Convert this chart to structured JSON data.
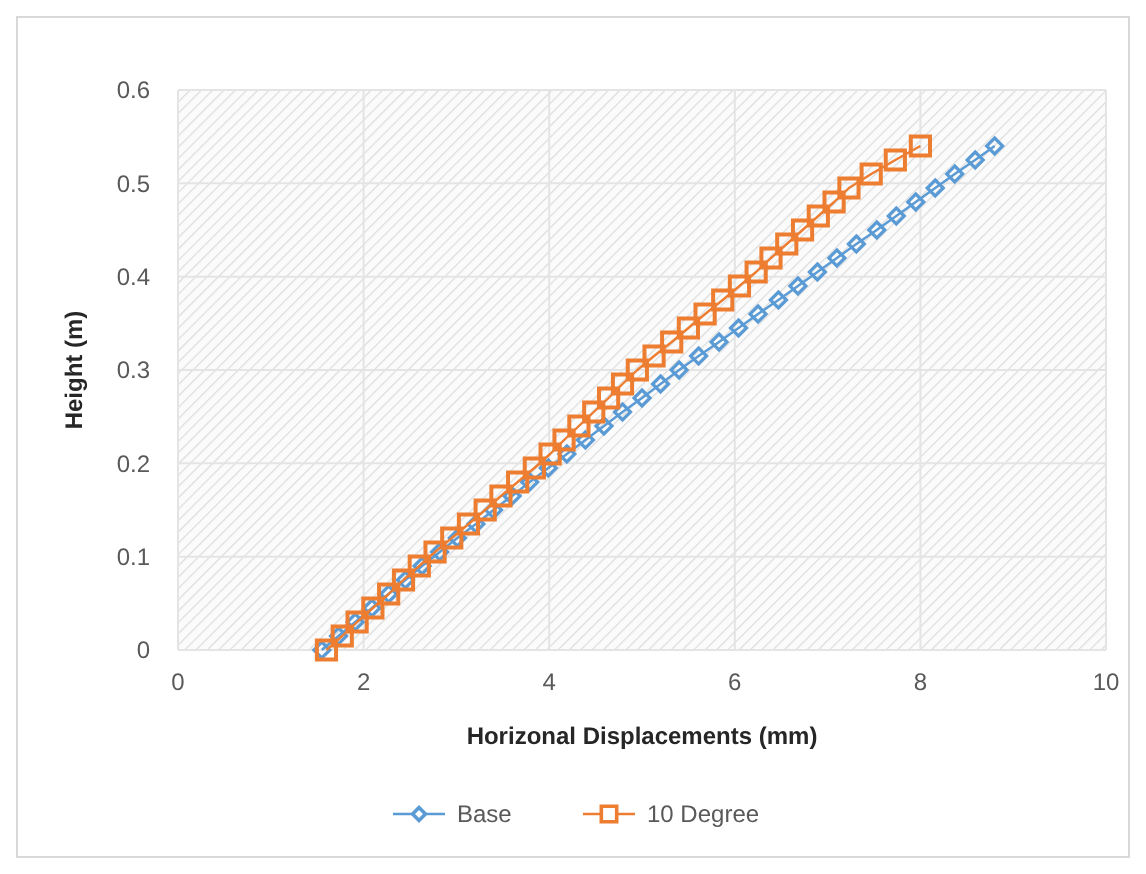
{
  "chart_data": {
    "type": "line",
    "xlabel": "Horizonal Displacements (mm)",
    "ylabel": "Height (m)",
    "xlim": [
      0,
      10
    ],
    "xticks": [
      0,
      2,
      4,
      6,
      8,
      10
    ],
    "ylim": [
      0,
      0.6
    ],
    "yticks": [
      0,
      0.1,
      0.2,
      0.3,
      0.4,
      0.5,
      0.6
    ],
    "grid": true,
    "legend": "bottom",
    "line_style": "solid",
    "series": [
      {
        "name": "Base",
        "color": "#5b9bd5",
        "marker": "diamond",
        "x": [
          1.55,
          1.73,
          1.91,
          2.09,
          2.27,
          2.45,
          2.63,
          2.82,
          3.01,
          3.21,
          3.4,
          3.6,
          3.79,
          3.99,
          4.19,
          4.39,
          4.59,
          4.79,
          5.0,
          5.2,
          5.4,
          5.61,
          5.83,
          6.04,
          6.25,
          6.47,
          6.68,
          6.89,
          7.1,
          7.31,
          7.53,
          7.74,
          7.95,
          8.16,
          8.37,
          8.59,
          8.8
        ],
        "values": [
          0,
          0.015,
          0.03,
          0.045,
          0.06,
          0.075,
          0.09,
          0.105,
          0.12,
          0.135,
          0.15,
          0.165,
          0.18,
          0.195,
          0.21,
          0.225,
          0.24,
          0.255,
          0.27,
          0.285,
          0.3,
          0.315,
          0.33,
          0.345,
          0.36,
          0.375,
          0.39,
          0.405,
          0.42,
          0.435,
          0.45,
          0.465,
          0.48,
          0.495,
          0.51,
          0.525,
          0.54
        ]
      },
      {
        "name": "10 Degree",
        "color": "#ed7d31",
        "marker": "square",
        "x": [
          1.6,
          1.77,
          1.93,
          2.1,
          2.27,
          2.43,
          2.6,
          2.77,
          2.95,
          3.13,
          3.31,
          3.48,
          3.66,
          3.84,
          4.01,
          4.16,
          4.32,
          4.48,
          4.64,
          4.79,
          4.95,
          5.13,
          5.32,
          5.5,
          5.68,
          5.87,
          6.05,
          6.23,
          6.39,
          6.56,
          6.73,
          6.9,
          7.07,
          7.23,
          7.47,
          7.73,
          8.0
        ],
        "values": [
          0,
          0.015,
          0.03,
          0.045,
          0.06,
          0.075,
          0.09,
          0.105,
          0.12,
          0.135,
          0.15,
          0.165,
          0.18,
          0.195,
          0.21,
          0.225,
          0.24,
          0.255,
          0.27,
          0.285,
          0.3,
          0.315,
          0.33,
          0.345,
          0.36,
          0.375,
          0.39,
          0.405,
          0.42,
          0.435,
          0.45,
          0.465,
          0.48,
          0.495,
          0.51,
          0.525,
          0.54
        ]
      }
    ]
  }
}
